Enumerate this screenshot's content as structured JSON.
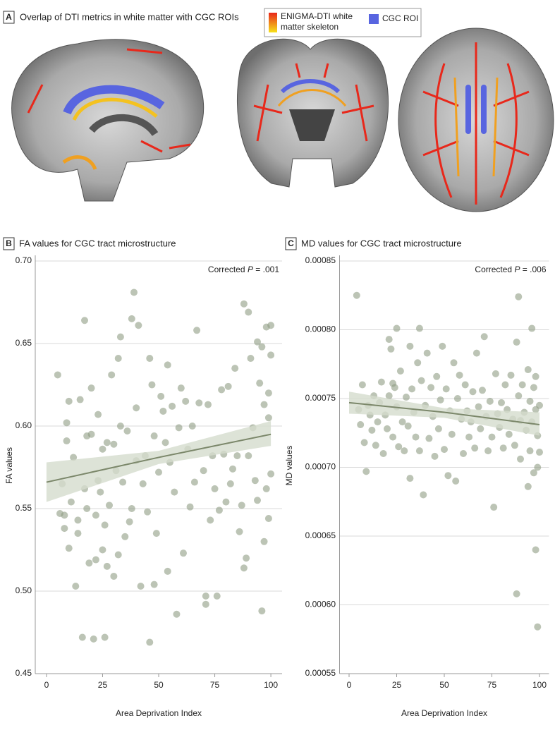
{
  "panel_a": {
    "panel_label": "A",
    "title": "Overlap of DTI metrics in white matter with CGC ROIs",
    "legend": [
      {
        "lines": [
          "ENIGMA-DTI white",
          "matter skeleton"
        ]
      },
      {
        "lines": [
          "CGC ROI"
        ]
      }
    ]
  },
  "chart_data": [
    {
      "type": "scatter",
      "panel_label": "B",
      "title": "FA values for CGC tract microstructure",
      "annotation": {
        "prefix": "Corrected ",
        "italic": "P",
        "suffix": " = .001"
      },
      "xlabel": "Area Deprivation Index",
      "ylabel": "FA values",
      "color": "#8f9c84",
      "x": [
        5,
        6,
        7,
        8,
        9,
        10,
        9,
        10,
        11,
        8,
        12,
        13,
        14,
        14,
        15,
        16,
        17,
        17,
        18,
        18,
        19,
        20,
        20,
        21,
        22,
        22,
        23,
        23,
        24,
        25,
        25,
        26,
        26,
        27,
        27,
        28,
        29,
        30,
        30,
        31,
        32,
        32,
        33,
        33,
        34,
        35,
        36,
        37,
        38,
        38,
        39,
        40,
        40,
        41,
        42,
        43,
        44,
        45,
        46,
        46,
        47,
        48,
        48,
        49,
        50,
        51,
        52,
        53,
        54,
        54,
        55,
        56,
        57,
        58,
        59,
        60,
        61,
        62,
        63,
        64,
        65,
        66,
        67,
        68,
        70,
        71,
        71,
        72,
        73,
        74,
        75,
        76,
        77,
        78,
        79,
        80,
        81,
        82,
        83,
        84,
        85,
        86,
        87,
        88,
        88,
        89,
        90,
        90,
        91,
        92,
        93,
        94,
        94,
        95,
        96,
        96,
        97,
        97,
        98,
        98,
        99,
        99,
        100,
        100,
        99,
        100
      ],
      "values": [
        0.631,
        0.547,
        0.565,
        0.538,
        0.602,
        0.615,
        0.591,
        0.526,
        0.554,
        0.546,
        0.581,
        0.503,
        0.543,
        0.535,
        0.616,
        0.472,
        0.664,
        0.562,
        0.594,
        0.55,
        0.517,
        0.623,
        0.595,
        0.471,
        0.546,
        0.519,
        0.607,
        0.567,
        0.56,
        0.525,
        0.586,
        0.472,
        0.54,
        0.515,
        0.59,
        0.552,
        0.631,
        0.509,
        0.589,
        0.573,
        0.641,
        0.522,
        0.654,
        0.6,
        0.566,
        0.533,
        0.597,
        0.542,
        0.665,
        0.55,
        0.681,
        0.611,
        0.579,
        0.661,
        0.503,
        0.565,
        0.582,
        0.548,
        0.469,
        0.641,
        0.625,
        0.504,
        0.594,
        0.535,
        0.572,
        0.618,
        0.609,
        0.59,
        0.512,
        0.637,
        0.578,
        0.612,
        0.56,
        0.486,
        0.599,
        0.623,
        0.523,
        0.615,
        0.586,
        0.551,
        0.6,
        0.566,
        0.658,
        0.614,
        0.573,
        0.497,
        0.492,
        0.613,
        0.543,
        0.582,
        0.562,
        0.497,
        0.549,
        0.622,
        0.583,
        0.554,
        0.624,
        0.565,
        0.574,
        0.635,
        0.582,
        0.536,
        0.552,
        0.674,
        0.514,
        0.52,
        0.669,
        0.582,
        0.641,
        0.599,
        0.567,
        0.651,
        0.555,
        0.626,
        0.648,
        0.488,
        0.53,
        0.613,
        0.66,
        0.562,
        0.62,
        0.605,
        0.661,
        0.571,
        0.544,
        0.643
      ],
      "fit": {
        "x": [
          0,
          50,
          100
        ],
        "values": [
          0.566,
          0.581,
          0.595
        ],
        "lower": [
          0.554,
          0.577,
          0.588
        ],
        "upper": [
          0.578,
          0.585,
          0.603
        ],
        "color": "#7b876a",
        "band_color": "#d5dccd"
      },
      "xlim": [
        -5,
        105
      ],
      "ylim": [
        0.45,
        0.7
      ],
      "xticks": [
        0,
        25,
        50,
        75,
        100
      ],
      "yticks": [
        0.45,
        {
          "value": 0.5,
          "label": "0.50"
        },
        0.55,
        {
          "value": 0.6,
          "label": "0.60"
        },
        0.65,
        {
          "value": 0.7,
          "label": "0.70"
        }
      ],
      "grid": true
    },
    {
      "type": "scatter",
      "panel_label": "C",
      "title": "MD values for CGC tract microstructure",
      "annotation": {
        "prefix": "Corrected ",
        "italic": "P",
        "suffix": " = .006"
      },
      "xlabel": "Area Deprivation Index",
      "ylabel": "MD values",
      "color": "#8f9c84",
      "x": [
        4,
        5,
        6,
        7,
        8,
        9,
        10,
        11,
        12,
        13,
        14,
        15,
        16,
        17,
        18,
        19,
        20,
        21,
        21,
        22,
        23,
        23,
        24,
        25,
        25,
        26,
        27,
        28,
        29,
        30,
        31,
        32,
        32,
        33,
        34,
        35,
        36,
        37,
        37,
        38,
        39,
        40,
        41,
        42,
        43,
        44,
        45,
        46,
        47,
        48,
        49,
        50,
        51,
        52,
        53,
        54,
        55,
        56,
        57,
        58,
        59,
        60,
        61,
        62,
        63,
        64,
        65,
        66,
        67,
        68,
        69,
        70,
        71,
        72,
        73,
        74,
        75,
        76,
        77,
        78,
        79,
        80,
        81,
        82,
        83,
        84,
        85,
        86,
        87,
        88,
        88,
        89,
        89,
        90,
        90,
        91,
        92,
        93,
        94,
        94,
        95,
        95,
        96,
        96,
        97,
        97,
        98,
        98,
        99,
        99,
        100,
        100,
        99,
        98
      ],
      "values": [
        0.000825,
        0.000742,
        0.000731,
        0.00076,
        0.000718,
        0.000697,
        0.000745,
        0.000738,
        0.000727,
        0.000752,
        0.000716,
        0.000733,
        0.000747,
        0.000762,
        0.00071,
        0.000738,
        0.000728,
        0.000793,
        0.000752,
        0.000786,
        0.000761,
        0.000722,
        0.000758,
        0.000801,
        0.000744,
        0.000715,
        0.00077,
        0.000733,
        0.000712,
        0.000751,
        0.00073,
        0.000692,
        0.000788,
        0.000757,
        0.00074,
        0.000722,
        0.000776,
        0.000801,
        0.000712,
        0.000763,
        0.00068,
        0.000745,
        0.000783,
        0.000721,
        0.000758,
        0.000737,
        0.000708,
        0.000766,
        0.000728,
        0.000749,
        0.000788,
        0.000713,
        0.000757,
        0.000694,
        0.000741,
        0.000724,
        0.000776,
        0.00069,
        0.00075,
        0.000767,
        0.000735,
        0.00071,
        0.00076,
        0.000741,
        0.000722,
        0.000733,
        0.000755,
        0.000714,
        0.000783,
        0.000744,
        0.000728,
        0.000756,
        0.000795,
        0.000737,
        0.000712,
        0.000748,
        0.000722,
        0.000671,
        0.000768,
        0.000739,
        0.000729,
        0.000747,
        0.000714,
        0.00076,
        0.000742,
        0.000724,
        0.000767,
        0.000735,
        0.000716,
        0.000608,
        0.000791,
        0.000824,
        0.000752,
        0.000734,
        0.000706,
        0.00076,
        0.00074,
        0.000727,
        0.000686,
        0.000771,
        0.000748,
        0.000712,
        0.000801,
        0.000733,
        0.000758,
        0.000696,
        0.00064,
        0.000742,
        0.000584,
        0.000723,
        0.000745,
        0.000711,
        0.0007,
        0.000766
      ],
      "fit": {
        "x": [
          0,
          50,
          100
        ],
        "values": [
          0.000747,
          0.00074,
          0.000731
        ],
        "lower": [
          0.000739,
          0.000736,
          0.000723
        ],
        "upper": [
          0.000755,
          0.000743,
          0.00074
        ],
        "color": "#7b876a",
        "band_color": "#d5dccd"
      },
      "xlim": [
        -5,
        105
      ],
      "ylim": [
        0.00055,
        0.00085
      ],
      "xticks": [
        0,
        25,
        50,
        75,
        100
      ],
      "yticks": [
        0.00055,
        {
          "value": 0.0006,
          "label": "0.00060"
        },
        0.00065,
        {
          "value": 0.0007,
          "label": "0.00070"
        },
        0.00075,
        {
          "value": 0.0008,
          "label": "0.00080"
        },
        0.00085
      ],
      "grid": true
    }
  ]
}
